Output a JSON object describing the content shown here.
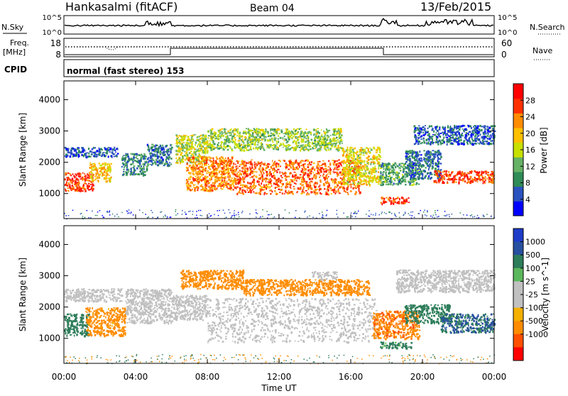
{
  "header": {
    "station": "Hankasalmi (fitACF)",
    "beam": "Beam 04",
    "date": "13/Feb/2015"
  },
  "noise_panel": {
    "left_label": "N.Sky",
    "right_label": "N.Search",
    "left_ticks": [
      "10^5",
      "10^0"
    ],
    "right_ticks": [
      "10^5",
      "10^0"
    ]
  },
  "freq_panel": {
    "left_label_line1": "Freq.",
    "left_label_line2": "[MHz]",
    "right_label": "Nave",
    "left_ticks": [
      "18",
      "8"
    ],
    "right_ticks": [
      "60",
      "0"
    ]
  },
  "cpid_panel": {
    "label": "CPID",
    "text": "normal (fast stereo) 153"
  },
  "colors": {
    "power_scale": [
      "#0000ff",
      "#2a52be",
      "#2e8b57",
      "#66b266",
      "#c8e000",
      "#ffc000",
      "#ff8c00",
      "#ff3000",
      "#ff0000"
    ],
    "velocity_scale": [
      "#1e3cc8",
      "#2850a0",
      "#2e7d5a",
      "#5cb85c",
      "#c0c0c0",
      "#c0c0c0",
      "#f5b000",
      "#ff8c00",
      "#ff5000",
      "#ff0000"
    ]
  },
  "chart_data": [
    {
      "type": "heatmap",
      "title": "",
      "xlabel": "",
      "ylabel": "Slant Range [km]",
      "xlim": [
        "00:00",
        "24:00"
      ],
      "ylim": [
        200,
        4600
      ],
      "y_ticks": [
        "1000",
        "2000",
        "3000",
        "4000"
      ],
      "colorbar": {
        "label": "Power [dB]",
        "ticks": [
          "4",
          "8",
          "12",
          "16",
          "20",
          "24",
          "28"
        ],
        "range": [
          0,
          32
        ]
      },
      "regions": [
        {
          "t0": 0.0,
          "t1": 1.6,
          "r0": 1100,
          "r1": 1700,
          "value": 30
        },
        {
          "t0": 0.0,
          "t1": 3.0,
          "r0": 2200,
          "r1": 2500,
          "value": 6
        },
        {
          "t0": 1.4,
          "t1": 2.6,
          "r0": 1400,
          "r1": 2000,
          "value": 22
        },
        {
          "t0": 3.2,
          "t1": 4.6,
          "r0": 1600,
          "r1": 2300,
          "value": 10
        },
        {
          "t0": 4.6,
          "t1": 6.0,
          "r0": 1900,
          "r1": 2600,
          "value": 8
        },
        {
          "t0": 6.2,
          "t1": 8.0,
          "r0": 2000,
          "r1": 2900,
          "value": 18
        },
        {
          "t0": 6.8,
          "t1": 9.5,
          "r0": 1100,
          "r1": 2200,
          "value": 26
        },
        {
          "t0": 9.5,
          "t1": 16.5,
          "r0": 1000,
          "r1": 2100,
          "value": 28
        },
        {
          "t0": 8.0,
          "t1": 15.5,
          "r0": 2400,
          "r1": 3100,
          "value": 16
        },
        {
          "t0": 15.5,
          "t1": 17.6,
          "r0": 1300,
          "r1": 2500,
          "value": 20
        },
        {
          "t0": 17.6,
          "t1": 19.2,
          "r0": 700,
          "r1": 900,
          "value": 30
        },
        {
          "t0": 17.6,
          "t1": 19.8,
          "r0": 1300,
          "r1": 2000,
          "value": 12
        },
        {
          "t0": 19.0,
          "t1": 21.0,
          "r0": 1500,
          "r1": 2400,
          "value": 8
        },
        {
          "t0": 20.6,
          "t1": 24.0,
          "r0": 1350,
          "r1": 1750,
          "value": 30
        },
        {
          "t0": 19.5,
          "t1": 24.0,
          "r0": 2600,
          "r1": 3200,
          "value": 7
        }
      ]
    },
    {
      "type": "heatmap",
      "title": "",
      "xlabel": "Time UT",
      "ylabel": "Slant Range [km]",
      "xlim": [
        "00:00",
        "24:00"
      ],
      "ylim": [
        200,
        4600
      ],
      "x_ticks": [
        "00:00",
        "04:00",
        "08:00",
        "12:00",
        "16:00",
        "20:00",
        "00:00"
      ],
      "y_ticks": [
        "1000",
        "2000",
        "3000",
        "4000"
      ],
      "colorbar": {
        "label": "Velocity [m s^-1]",
        "ticks": [
          "1000",
          "500",
          "100",
          "25",
          "-25",
          "-100",
          "-500",
          "-1000"
        ]
      },
      "regions": [
        {
          "t0": 0.0,
          "t1": 3.2,
          "r0": 2200,
          "r1": 2600,
          "value": 0
        },
        {
          "t0": 0.0,
          "t1": 1.4,
          "r0": 1100,
          "r1": 1800,
          "value": 300
        },
        {
          "t0": 1.2,
          "t1": 3.4,
          "r0": 1100,
          "r1": 2000,
          "value": -150
        },
        {
          "t0": 3.4,
          "t1": 6.0,
          "r0": 1500,
          "r1": 2600,
          "value": 0
        },
        {
          "t0": 6.0,
          "t1": 8.0,
          "r0": 1600,
          "r1": 2400,
          "value": 0
        },
        {
          "t0": 6.5,
          "t1": 10.0,
          "r0": 2600,
          "r1": 3200,
          "value": -300
        },
        {
          "t0": 8.0,
          "t1": 17.4,
          "r0": 900,
          "r1": 2300,
          "value": 0
        },
        {
          "t0": 10.0,
          "t1": 17.0,
          "r0": 2400,
          "r1": 2900,
          "value": -250
        },
        {
          "t0": 13.8,
          "t1": 15.2,
          "r0": 2900,
          "r1": 3150,
          "value": 0
        },
        {
          "t0": 17.2,
          "t1": 19.8,
          "r0": 1000,
          "r1": 1900,
          "value": -400
        },
        {
          "t0": 17.6,
          "t1": 19.4,
          "r0": 700,
          "r1": 900,
          "value": 150
        },
        {
          "t0": 19.0,
          "t1": 21.5,
          "r0": 1500,
          "r1": 2100,
          "value": 300
        },
        {
          "t0": 21.0,
          "t1": 24.0,
          "r0": 1200,
          "r1": 1800,
          "value": 500
        },
        {
          "t0": 18.5,
          "t1": 24.0,
          "r0": 2500,
          "r1": 3200,
          "value": 0
        }
      ]
    }
  ]
}
